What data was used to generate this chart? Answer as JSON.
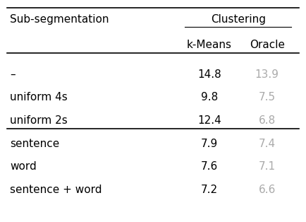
{
  "col_header_row1_left": "Sub-segmentation",
  "col_header_row1_center": "Clustering",
  "col_header_row2": [
    "k-Means",
    "Oracle"
  ],
  "rows": [
    [
      "–",
      "14.8",
      "13.9"
    ],
    [
      "uniform 4s",
      "9.8",
      "7.5"
    ],
    [
      "uniform 2s",
      "12.4",
      "6.8"
    ],
    [
      "sentence",
      "7.9",
      "7.4"
    ],
    [
      "word",
      "7.6",
      "7.1"
    ],
    [
      "sentence + word",
      "7.2",
      "6.6"
    ]
  ],
  "oracle_color": "#aaaaaa",
  "text_color": "#000000",
  "background_color": "#ffffff",
  "font_size": 11
}
